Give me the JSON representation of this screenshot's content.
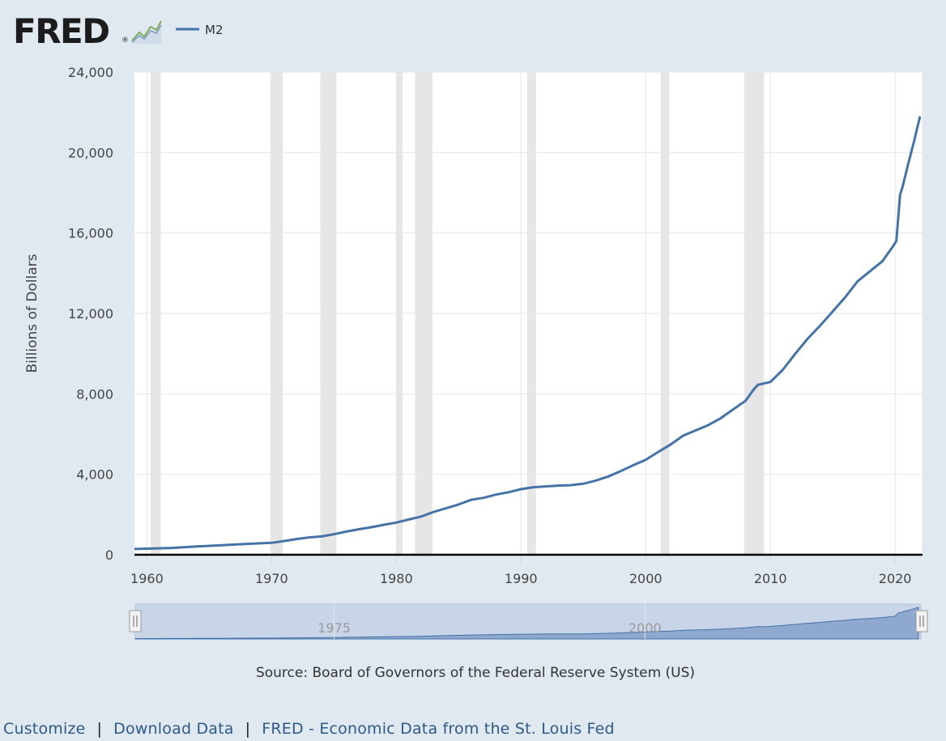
{
  "brand": {
    "name": "FRED",
    "registered": "®",
    "icon": "fred-chart-icon"
  },
  "colors": {
    "series": "#4572a7",
    "recession": "#e6e6e6",
    "background": "#e1e9f0",
    "plot": "#ffffff",
    "navigator_fill": "#c8d4e8",
    "link": "#2d5a8a"
  },
  "chart_data": {
    "type": "line",
    "title": "",
    "xlabel": "",
    "ylabel": "Billions of Dollars",
    "xlim": [
      1959.0,
      2022.2
    ],
    "ylim": [
      0,
      24000
    ],
    "yticks": [
      0,
      4000,
      8000,
      12000,
      16000,
      20000,
      24000
    ],
    "ytick_labels": [
      "0",
      "4,000",
      "8,000",
      "12,000",
      "16,000",
      "20,000",
      "24,000"
    ],
    "xticks": [
      1960,
      1970,
      1980,
      1990,
      2000,
      2010,
      2020
    ],
    "xtick_labels": [
      "1960",
      "1970",
      "1980",
      "1990",
      "2000",
      "2010",
      "2020"
    ],
    "grid": true,
    "legend": {
      "position": "top-left",
      "entries": [
        "M2"
      ]
    },
    "recessions": [
      [
        1960.3,
        1961.1
      ],
      [
        1969.9,
        1970.9
      ],
      [
        1973.9,
        1975.2
      ],
      [
        1980.0,
        1980.5
      ],
      [
        1981.5,
        1982.9
      ],
      [
        1990.5,
        1991.2
      ],
      [
        2001.2,
        2001.9
      ],
      [
        2007.9,
        2009.5
      ]
    ],
    "series": [
      {
        "name": "M2",
        "x": [
          1959.0,
          1960,
          1962,
          1964,
          1966,
          1968,
          1970,
          1971,
          1972,
          1973,
          1974,
          1975,
          1976,
          1977,
          1978,
          1979,
          1980,
          1981,
          1982,
          1983,
          1984,
          1985,
          1986,
          1987,
          1988,
          1989,
          1990,
          1991,
          1992,
          1993,
          1994,
          1995,
          1996,
          1997,
          1998,
          1999,
          2000,
          2001,
          2002,
          2003,
          2004,
          2005,
          2006,
          2007,
          2008,
          2008.7,
          2009,
          2010,
          2011,
          2012,
          2013,
          2014,
          2015,
          2016,
          2017,
          2018,
          2019,
          2019.9,
          2020.1,
          2020.4,
          2020.6,
          2021,
          2021.5,
          2022.0
        ],
        "y": [
          286,
          300,
          340,
          410,
          470,
          540,
          590,
          680,
          780,
          860,
          910,
          1020,
          1150,
          1270,
          1370,
          1490,
          1600,
          1750,
          1900,
          2130,
          2310,
          2500,
          2730,
          2830,
          2990,
          3110,
          3260,
          3360,
          3400,
          3440,
          3460,
          3530,
          3690,
          3890,
          4160,
          4450,
          4720,
          5110,
          5480,
          5920,
          6180,
          6440,
          6780,
          7220,
          7650,
          8250,
          8450,
          8590,
          9200,
          10000,
          10750,
          11400,
          12100,
          12800,
          13600,
          14100,
          14600,
          15400,
          15600,
          17900,
          18300,
          19300,
          20500,
          21800
        ]
      }
    ],
    "source": "Source: Board of Governors of the Federal Reserve System (US)",
    "navigator": {
      "tick_labels": [
        "1975",
        "2000"
      ],
      "tick_values": [
        1975,
        2000
      ],
      "range": [
        1959.0,
        2022.2
      ]
    }
  },
  "footer": {
    "links": [
      {
        "label": "Customize"
      },
      {
        "label": "Download Data"
      },
      {
        "label": "FRED - Economic Data from the St. Louis Fed"
      }
    ],
    "separator": "|"
  }
}
